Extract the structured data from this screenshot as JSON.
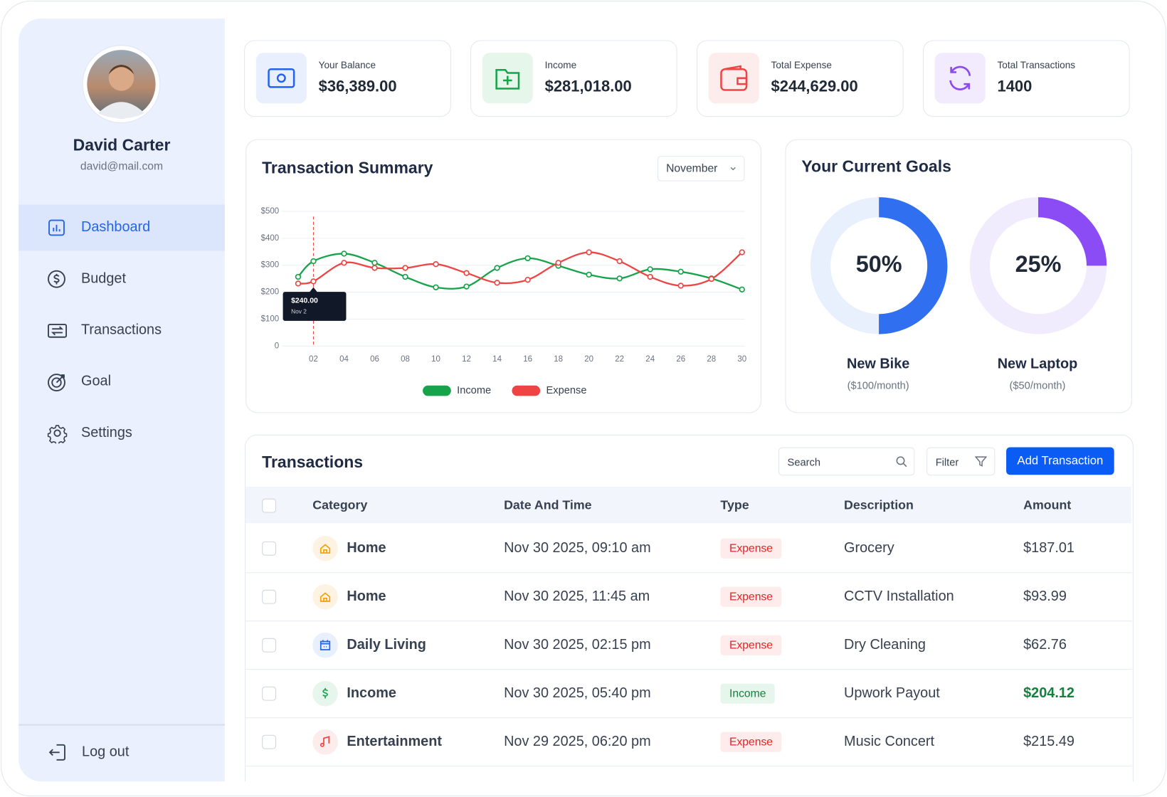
{
  "profile": {
    "name": "David Carter",
    "email": "david@mail.com"
  },
  "nav": [
    "Dashboard",
    "Budget",
    "Transactions",
    "Goal",
    "Settings"
  ],
  "logout": "Log out",
  "stats": [
    {
      "label": "Your Balance",
      "value": "$36,389.00"
    },
    {
      "label": "Income",
      "value": "$281,018.00"
    },
    {
      "label": "Total Expense",
      "value": "$244,629.00"
    },
    {
      "label": "Total Transactions",
      "value": "1400"
    }
  ],
  "goals_title": "Your Current Goals",
  "chart_data": [
    {
      "type": "line",
      "title": "Transaction Summary",
      "month_selector": "November",
      "x": [
        1,
        2,
        4,
        6,
        8,
        10,
        12,
        14,
        16,
        18,
        20,
        22,
        24,
        26,
        28,
        30
      ],
      "xlim": [
        0,
        30
      ],
      "xticks": [
        {
          "value": 2,
          "label": "02"
        },
        {
          "value": 4,
          "label": "04"
        },
        {
          "value": 6,
          "label": "06"
        },
        {
          "value": 8,
          "label": "08"
        },
        {
          "value": 10,
          "label": "10"
        },
        {
          "value": 12,
          "label": "12"
        },
        {
          "value": 14,
          "label": "14"
        },
        {
          "value": 16,
          "label": "16"
        },
        {
          "value": 18,
          "label": "18"
        },
        {
          "value": 20,
          "label": "20"
        },
        {
          "value": 22,
          "label": "22"
        },
        {
          "value": 24,
          "label": "24"
        },
        {
          "value": 26,
          "label": "26"
        },
        {
          "value": 28,
          "label": "28"
        },
        {
          "value": 30,
          "label": "30"
        }
      ],
      "ylim": [
        0,
        500
      ],
      "yticks": [
        0,
        {
          "value": 100,
          "label": "$100"
        },
        {
          "value": 200,
          "label": "$200"
        },
        {
          "value": 300,
          "label": "$300"
        },
        {
          "value": 400,
          "label": "$400"
        },
        {
          "value": 500,
          "label": "$500"
        }
      ],
      "grid": true,
      "series": [
        {
          "name": "Income",
          "color": "#16a34a",
          "values": [
            257,
            315,
            343,
            309,
            257,
            218,
            221,
            290,
            326,
            298,
            265,
            251,
            285,
            276,
            251,
            210
          ]
        },
        {
          "name": "Expense",
          "color": "#ef4444",
          "values": [
            232,
            240,
            309,
            290,
            290,
            304,
            271,
            235,
            246,
            309,
            348,
            315,
            257,
            224,
            249,
            348
          ]
        }
      ],
      "tooltip": {
        "x": 2,
        "value": 240,
        "value_label": "$240.00",
        "date": "Nov 2"
      }
    },
    {
      "type": "donut",
      "title": "New Bike",
      "subtitle": "($100/month)",
      "values": [
        50
      ],
      "value_labels": [
        "50%"
      ],
      "ylim": [
        0,
        100
      ],
      "color": "#2f6ff0",
      "track_color": "#e8effd"
    },
    {
      "type": "donut",
      "title": "New Laptop",
      "subtitle": "($50/month)",
      "values": [
        25
      ],
      "value_labels": [
        "25%"
      ],
      "ylim": [
        0,
        100
      ],
      "color": "#8b4cf6",
      "track_color": "#f1ebfe"
    }
  ],
  "transactions": {
    "title": "Transactions",
    "search": "Search",
    "filter": "Filter",
    "add_button": "Add Transaction",
    "columns": [
      "Category",
      "Date And Time",
      "Type",
      "Description",
      "Amount"
    ],
    "rows": [
      [
        "Home",
        "Nov 30 2025, 09:10 am",
        "Expense",
        "Grocery",
        "$187.01"
      ],
      [
        "Home",
        "Nov 30 2025, 11:45 am",
        "Expense",
        "CCTV Installation",
        "$93.99"
      ],
      [
        "Daily Living",
        "Nov 30 2025, 02:15 pm",
        "Expense",
        "Dry Cleaning",
        "$62.76"
      ],
      [
        "Income",
        "Nov 30 2025, 05:40 pm",
        "Income",
        "Upwork Payout",
        "$204.12"
      ],
      [
        "Entertainment",
        "Nov 29 2025, 06:20 pm",
        "Expense",
        "Music Concert",
        "$215.49"
      ]
    ]
  }
}
